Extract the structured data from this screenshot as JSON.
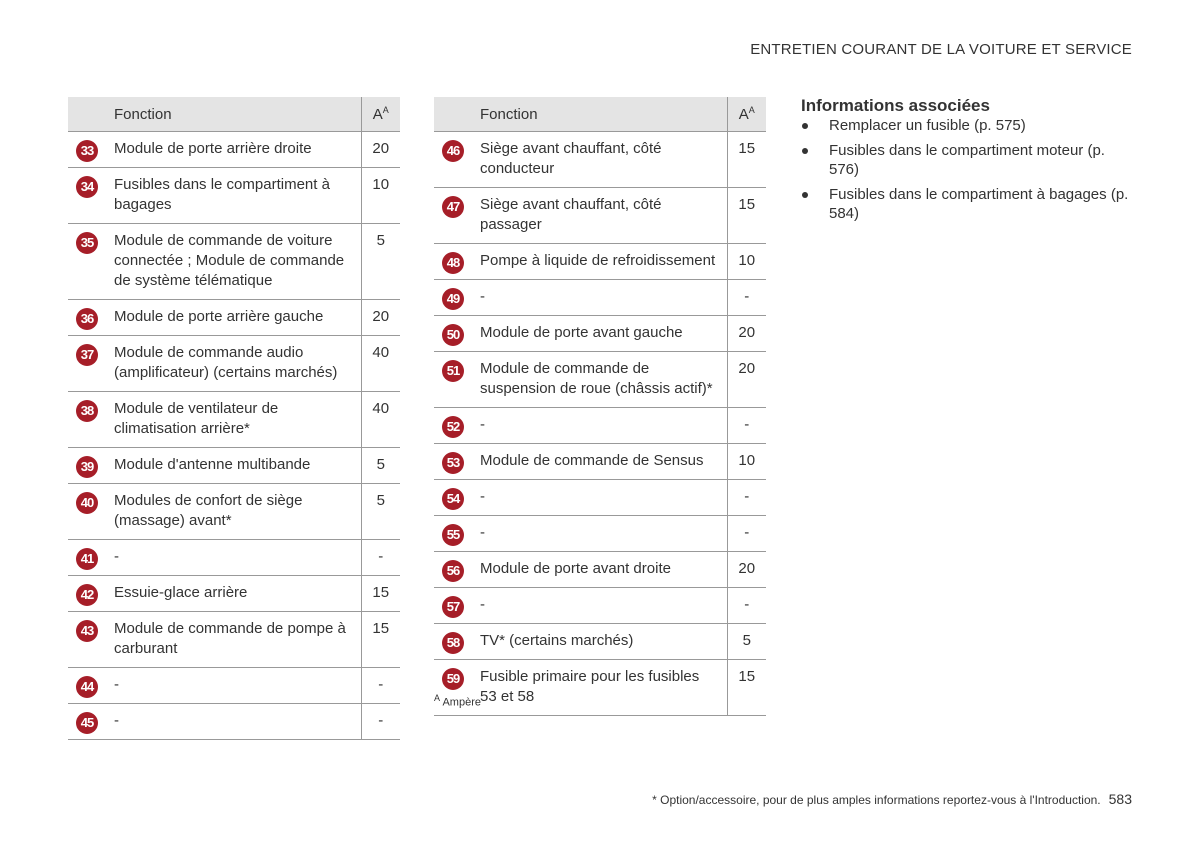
{
  "header": {
    "title": "ENTRETIEN COURANT DE LA VOITURE ET SERVICE"
  },
  "tables": [
    {
      "columns": {
        "function": "Fonction",
        "amp": "A",
        "amp_sup": "A"
      },
      "rows": [
        {
          "num": "33",
          "function": "Module de porte arrière droite",
          "amp": "20"
        },
        {
          "num": "34",
          "function": "Fusibles dans le compartiment à bagages",
          "amp": "10"
        },
        {
          "num": "35",
          "function": "Module de commande de voiture connectée ; Module de commande de système télématique",
          "amp": "5"
        },
        {
          "num": "36",
          "function": "Module de porte arrière gauche",
          "amp": "20"
        },
        {
          "num": "37",
          "function": "Module de commande audio (amplificateur) (certains marchés)",
          "amp": "40"
        },
        {
          "num": "38",
          "function": "Module de ventilateur de climatisation arrière*",
          "amp": "40"
        },
        {
          "num": "39",
          "function": "Module d'antenne multibande",
          "amp": "5"
        },
        {
          "num": "40",
          "function": "Modules de confort de siège (massage) avant*",
          "amp": "5"
        },
        {
          "num": "41",
          "function": "-",
          "amp": "-"
        },
        {
          "num": "42",
          "function": "Essuie-glace arrière",
          "amp": "15"
        },
        {
          "num": "43",
          "function": "Module de commande de pompe à carburant",
          "amp": "15"
        },
        {
          "num": "44",
          "function": "-",
          "amp": "-"
        },
        {
          "num": "45",
          "function": "-",
          "amp": "-"
        }
      ]
    },
    {
      "columns": {
        "function": "Fonction",
        "amp": "A",
        "amp_sup": "A"
      },
      "rows": [
        {
          "num": "46",
          "function": "Siège avant chauffant, côté conducteur",
          "amp": "15"
        },
        {
          "num": "47",
          "function": "Siège avant chauffant, côté passager",
          "amp": "15"
        },
        {
          "num": "48",
          "function": "Pompe à liquide de refroidissement",
          "amp": "10"
        },
        {
          "num": "49",
          "function": "-",
          "amp": "-"
        },
        {
          "num": "50",
          "function": "Module de porte avant gauche",
          "amp": "20"
        },
        {
          "num": "51",
          "function": "Module de commande de suspension de roue (châssis actif)*",
          "amp": "20"
        },
        {
          "num": "52",
          "function": "-",
          "amp": "-"
        },
        {
          "num": "53",
          "function": "Module de commande de Sensus",
          "amp": "10"
        },
        {
          "num": "54",
          "function": "-",
          "amp": "-"
        },
        {
          "num": "55",
          "function": "-",
          "amp": "-"
        },
        {
          "num": "56",
          "function": "Module de porte avant droite",
          "amp": "20"
        },
        {
          "num": "57",
          "function": "-",
          "amp": "-"
        },
        {
          "num": "58",
          "function": "TV* (certains marchés)",
          "amp": "5"
        },
        {
          "num": "59",
          "function": "Fusible primaire pour les fusibles 53 et 58",
          "amp": "15"
        }
      ],
      "footnote": {
        "marker": "A",
        "text": "Ampère"
      }
    }
  ],
  "related": {
    "title": "Informations associées",
    "items": [
      "Remplacer un fusible (p. 575)",
      "Fusibles dans le compartiment moteur (p. 576)",
      "Fusibles dans le compartiment à bagages (p. 584)"
    ]
  },
  "footer": {
    "note": "* Option/accessoire, pour de plus amples informations reportez-vous à l'Introduction.",
    "page": "583"
  }
}
